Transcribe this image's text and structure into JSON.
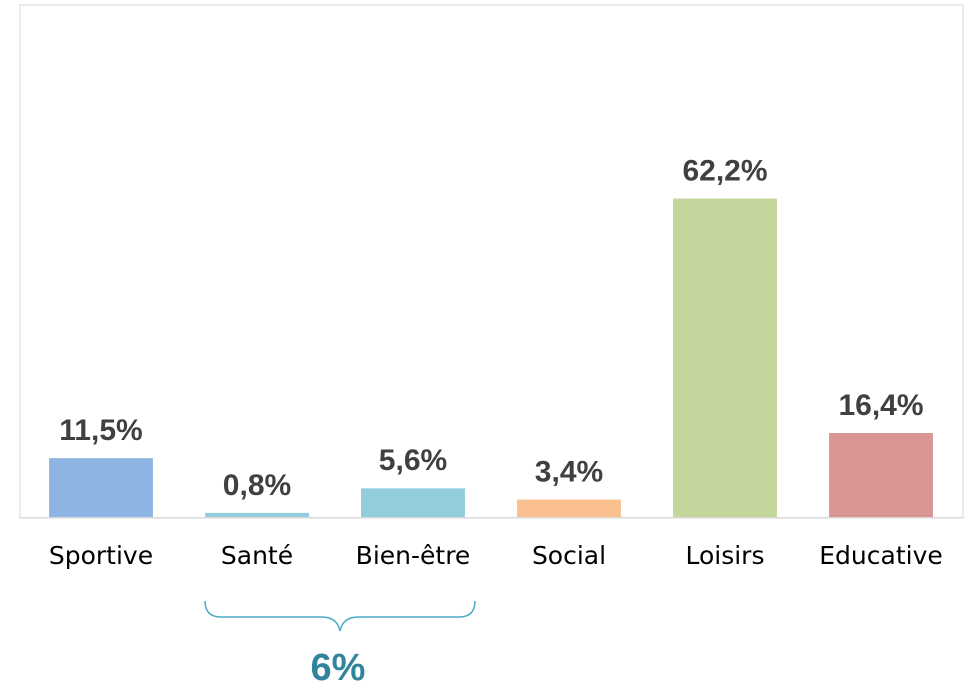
{
  "chart_data": {
    "type": "bar",
    "categories": [
      "Sportive",
      "Santé",
      "Bien-être",
      "Social",
      "Loisirs",
      "Educative"
    ],
    "values": [
      11.5,
      0.8,
      5.6,
      3.4,
      62.2,
      16.4
    ],
    "value_labels": [
      "11,5%",
      "0,8%",
      "5,6%",
      "3,4%",
      "62,2%",
      "16,4%"
    ],
    "colors": [
      "#8eb4e3",
      "#93cddd",
      "#93cddd",
      "#fac090",
      "#c3d69b",
      "#d99694"
    ],
    "ylim": [
      0,
      100
    ],
    "annotation": "6%"
  }
}
